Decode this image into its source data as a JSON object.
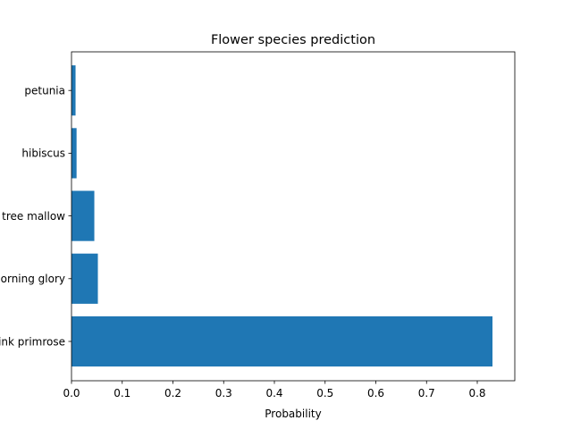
{
  "chart_data": {
    "type": "bar",
    "orientation": "horizontal",
    "title": "Flower species prediction",
    "xlabel": "Probability",
    "ylabel": "",
    "categories": [
      "pink primrose",
      "morning glory",
      "tree mallow",
      "hibiscus",
      "petunia"
    ],
    "values": [
      0.83,
      0.052,
      0.045,
      0.01,
      0.008
    ],
    "xlim": [
      0,
      0.874
    ],
    "xticks": [
      0.0,
      0.1,
      0.2,
      0.3,
      0.4,
      0.5,
      0.6,
      0.7,
      0.8
    ],
    "xtick_labels": [
      "0.0",
      "0.1",
      "0.2",
      "0.3",
      "0.4",
      "0.5",
      "0.6",
      "0.7",
      "0.8"
    ],
    "bar_color": "#1f77b4",
    "grid": false,
    "legend": "none"
  }
}
